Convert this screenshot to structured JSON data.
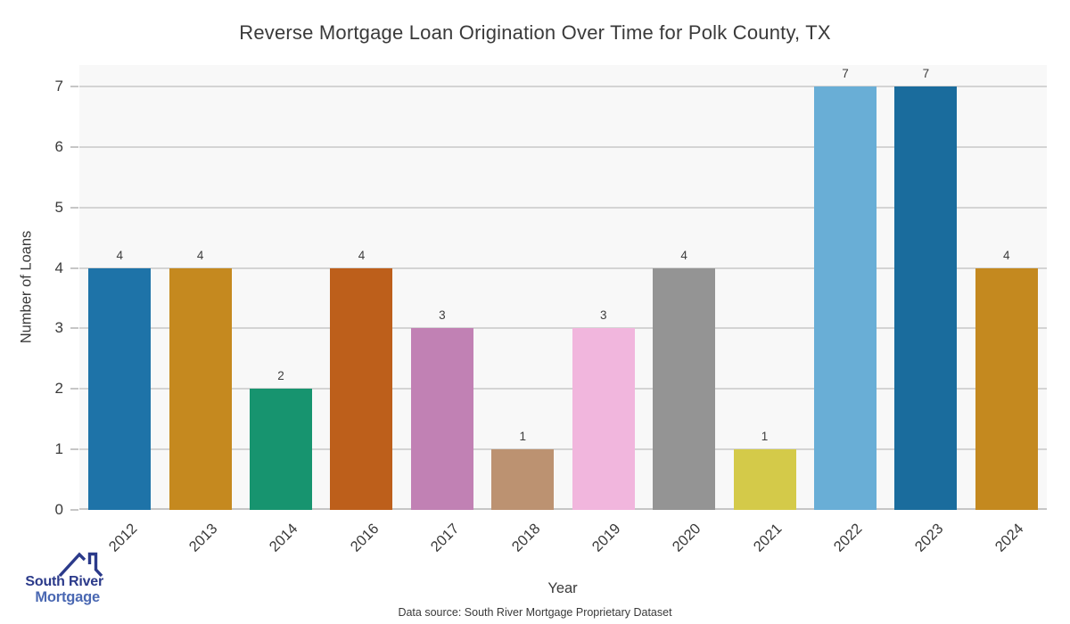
{
  "title": "Reverse Mortgage Loan Origination Over Time for Polk County, TX",
  "chart_data": {
    "type": "bar",
    "categories": [
      "2012",
      "2013",
      "2014",
      "2016",
      "2017",
      "2018",
      "2019",
      "2020",
      "2021",
      "2022",
      "2023",
      "2024"
    ],
    "values": [
      4,
      4,
      2,
      4,
      3,
      1,
      3,
      4,
      1,
      7,
      7,
      4
    ],
    "bar_colors": [
      "#1e73a8",
      "#c5891f",
      "#17946f",
      "#bd5f1b",
      "#c181b4",
      "#bc9271",
      "#f1b6dd",
      "#949494",
      "#d4ca49",
      "#69aed6",
      "#1a6c9d",
      "#c4891f"
    ],
    "title": "Reverse Mortgage Loan Origination Over Time for Polk County, TX",
    "xlabel": "Year",
    "ylabel": "Number of Loans",
    "ylim": [
      0,
      7
    ],
    "yticks": [
      0,
      1,
      2,
      3,
      4,
      5,
      6,
      7
    ],
    "grid": true,
    "legend": false,
    "value_labels": [
      4,
      4,
      2,
      4,
      3,
      1,
      3,
      4,
      1,
      7,
      7,
      4
    ],
    "plot_background": "#f8f8f8",
    "gridline_color": "#d4d4d4",
    "axis_line_color": "#c6c6c6"
  },
  "footer": {
    "data_source": "Data source: South River Mortgage Proprietary Dataset"
  },
  "logo": {
    "line1": "South River",
    "line2": "Mortgage",
    "color_primary": "#2b3a8a",
    "color_secondary": "#4a68b2"
  }
}
